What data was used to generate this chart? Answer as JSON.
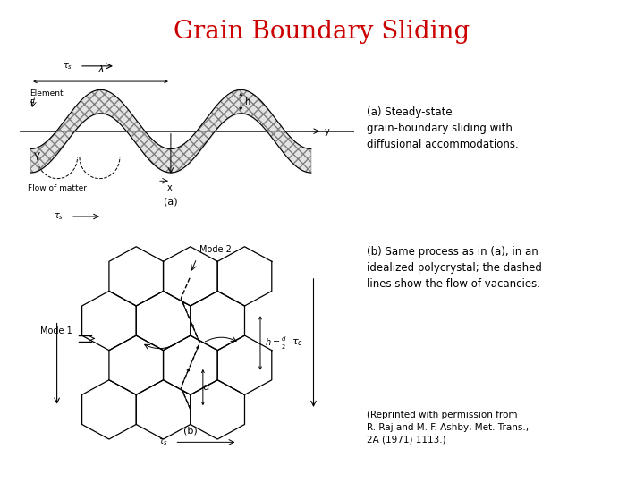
{
  "title": "Grain Boundary Sliding",
  "title_color": "#cc0000",
  "title_fontsize": 20,
  "background_color": "#ffffff",
  "annotation_a": "(a) Steady-state\ngrain-boundary sliding with\ndiffusional accommodations.",
  "annotation_b": "(b) Same process as in (a), in an\nidealized polycrystal; the dashed\nlines show the flow of vacancies.",
  "annotation_citation": "(Reprinted with permission from\nR. Raj and M. F. Ashby, Met. Trans.,\n2A (1971) 1113.)",
  "text_fontsize": 8.5,
  "citation_fontsize": 7.5,
  "fig_width": 7.2,
  "fig_height": 5.4,
  "dpi": 100
}
